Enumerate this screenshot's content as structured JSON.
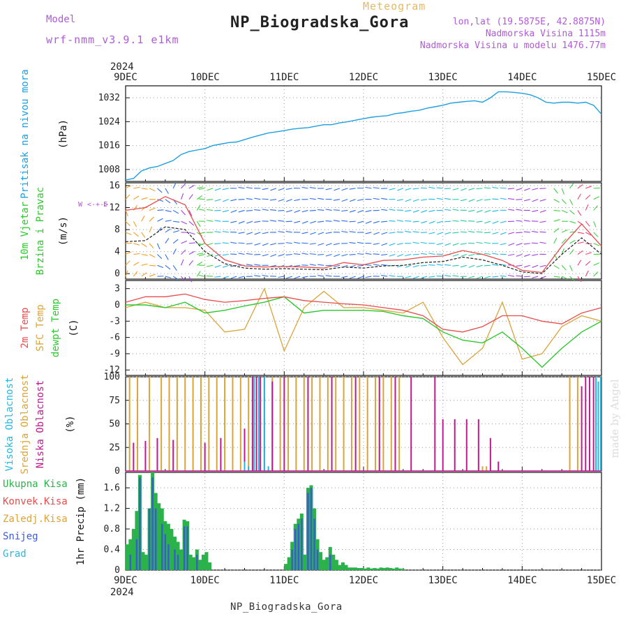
{
  "header": {
    "title": "NP_Biogradska_Gora",
    "meteogram_label": "Meteogram",
    "model_label": "Model",
    "model_name": "wrf-nmm_v3.9.1 e1km",
    "lonlat": "lon,lat (19.5875E, 42.8875N)",
    "elevation": "Nadmorska Visina 1115m",
    "elevation_model": "Nadmorska Visina u modelu 1476.77m",
    "footer": "NP_Biogradska_Gora",
    "watermark": "made by Angel"
  },
  "time_axis": {
    "year": "2024",
    "labels": [
      "9DEC",
      "10DEC",
      "11DEC",
      "12DEC",
      "13DEC",
      "14DEC",
      "15DEC"
    ]
  },
  "colors": {
    "pressure": "#1e9fe0",
    "temp2m": "#e84c4c",
    "sfc_temp": "#d9a43a",
    "dewpt": "#2ec82e",
    "cloud_high": "#27b7e0",
    "cloud_mid": "#d9a43a",
    "cloud_low": "#c0188e",
    "precip_total": "#2bb24a",
    "precip_snow": "#3c5ad8",
    "wind_mean": "#222222",
    "wind_gust": "#e84c4c"
  },
  "chart_data": [
    {
      "type": "line",
      "panel": "pressure",
      "ylabel": "Pritisak na nivou mora",
      "unit": "(hPa)",
      "ylim": [
        1004,
        1036
      ],
      "yticks": [
        "1008",
        "1016",
        "1024",
        "1032"
      ],
      "grid": true,
      "x": [
        0,
        0.1,
        0.2,
        0.3,
        0.4,
        0.5,
        0.6,
        0.7,
        0.8,
        0.9,
        1.0,
        1.1,
        1.2,
        1.3,
        1.4,
        1.5,
        1.6,
        1.7,
        1.8,
        1.9,
        2.0,
        2.1,
        2.2,
        2.3,
        2.4,
        2.5,
        2.6,
        2.7,
        2.8,
        2.9,
        3.0,
        3.1,
        3.2,
        3.3,
        3.4,
        3.5,
        3.6,
        3.7,
        3.8,
        3.9,
        4.0,
        4.1,
        4.2,
        4.3,
        4.4,
        4.5,
        4.6,
        4.7,
        4.8,
        4.9,
        5.0,
        5.1,
        5.2,
        5.3,
        5.4,
        5.5,
        5.6,
        5.7,
        5.8,
        5.9,
        6.0
      ],
      "series": [
        {
          "values": [
            1004.5,
            1005,
            1007.5,
            1008.5,
            1009,
            1010,
            1011,
            1013,
            1014,
            1014.5,
            1015,
            1016,
            1016.5,
            1017,
            1017.2,
            1018,
            1018.8,
            1019.5,
            1020.2,
            1020.6,
            1021,
            1021.5,
            1021.8,
            1022,
            1022.5,
            1023,
            1023,
            1023.6,
            1024,
            1024.5,
            1025,
            1025.5,
            1025.8,
            1026,
            1026.7,
            1027,
            1027.5,
            1027.8,
            1028.5,
            1029,
            1029.5,
            1030.2,
            1030.5,
            1030.8,
            1031,
            1030.5,
            1032,
            1034,
            1034,
            1033.8,
            1033.5,
            1033,
            1032,
            1030.5,
            1030.2,
            1030.5,
            1030.5,
            1030.2,
            1030.5,
            1029.5,
            1026.5
          ]
        }
      ]
    },
    {
      "type": "line",
      "panel": "wind",
      "ylabel": "10m Vjetar",
      "ylabel2": "Brzina i Pravac",
      "unit": "(m/s)",
      "ylim": [
        -1,
        16.5
      ],
      "yticks": [
        "0",
        "4",
        "8",
        "12",
        "16"
      ],
      "grid": true,
      "compass": "N S W E",
      "x": [
        0,
        0.25,
        0.5,
        0.75,
        1.0,
        1.25,
        1.5,
        1.75,
        2.0,
        2.25,
        2.5,
        2.75,
        3.0,
        3.25,
        3.5,
        3.75,
        4.0,
        4.25,
        4.5,
        4.75,
        5.0,
        5.25,
        5.5,
        5.75,
        6.0
      ],
      "series": [
        {
          "values": [
            5.8,
            6.0,
            8.5,
            8.0,
            4.0,
            1.8,
            1.0,
            0.8,
            0.9,
            0.8,
            0.7,
            1.2,
            1.0,
            1.4,
            1.5,
            2.0,
            2.2,
            3.0,
            2.5,
            1.5,
            0.3,
            0.0,
            3.5,
            6.5,
            3.5
          ]
        },
        {
          "values": [
            11.5,
            12.0,
            14.0,
            12.5,
            5.5,
            2.5,
            1.4,
            1.2,
            1.3,
            1.2,
            1.0,
            2.0,
            1.6,
            2.4,
            2.5,
            3.0,
            3.2,
            4.2,
            3.5,
            2.4,
            0.6,
            0.2,
            5.0,
            9.0,
            5.0
          ]
        }
      ]
    },
    {
      "type": "line",
      "panel": "temperature",
      "ylabel": "2m Temp",
      "ylabel2": "SFC Temp",
      "ylabel3": "dewpt Temp",
      "unit": "(C)",
      "ylim": [
        -13,
        4.5
      ],
      "yticks": [
        "3",
        "0",
        "-3",
        "-6",
        "-9",
        "-12"
      ],
      "grid": true,
      "x": [
        0,
        0.25,
        0.5,
        0.75,
        1.0,
        1.25,
        1.5,
        1.75,
        2.0,
        2.25,
        2.5,
        2.75,
        3.0,
        3.25,
        3.5,
        3.75,
        4.0,
        4.25,
        4.5,
        4.75,
        5.0,
        5.25,
        5.5,
        5.75,
        6.0
      ],
      "series": [
        {
          "values": [
            0.5,
            1.5,
            1.5,
            2.0,
            1.0,
            0.5,
            0.8,
            1.2,
            1.5,
            0.8,
            0.5,
            0.2,
            0.0,
            -0.5,
            -1.0,
            -2.0,
            -4.5,
            -5.0,
            -4.0,
            -2.0,
            -2.0,
            -3.0,
            -3.5,
            -1.5,
            -0.5
          ]
        },
        {
          "values": [
            -0.5,
            0.5,
            -0.5,
            -0.5,
            -1.0,
            -5.0,
            -4.5,
            3.0,
            -8.5,
            -0.5,
            2.5,
            -0.5,
            -0.5,
            -1.0,
            -1.5,
            0.5,
            -6.0,
            -11.0,
            -8.0,
            0.5,
            -10.0,
            -9.0,
            -4.0,
            -2.0,
            -3.0
          ]
        },
        {
          "values": [
            0.0,
            0.0,
            -0.5,
            0.5,
            -1.5,
            -1.0,
            -0.2,
            0.5,
            1.5,
            -1.5,
            -1.0,
            -1.0,
            -1.0,
            -1.2,
            -2.0,
            -2.5,
            -5.0,
            -6.5,
            -7.0,
            -5.0,
            -8.0,
            -11.5,
            -8.0,
            -5.0,
            -3.0
          ]
        }
      ]
    },
    {
      "type": "bar",
      "panel": "cloud",
      "ylabel": "Visoka Oblacnost",
      "ylabel2": "Srednja Oblacnost",
      "ylabel3": "Niska Oblacnost",
      "unit": "(%)",
      "ylim": [
        0,
        100
      ],
      "yticks": [
        "0",
        "25",
        "50",
        "75",
        "100"
      ],
      "grid": true,
      "series": [
        {
          "x": [
            0.05,
            0.15,
            0.3,
            0.45,
            0.55,
            0.65,
            0.75,
            0.85,
            0.95,
            1.05,
            1.15,
            1.25,
            1.35,
            1.45,
            1.55,
            1.65,
            1.75,
            1.85,
            1.95,
            2.05,
            2.15,
            2.25,
            2.35,
            2.45,
            2.55,
            2.65,
            2.75,
            2.85,
            2.95,
            3.05,
            3.15,
            3.25,
            3.35,
            3.45,
            4.5,
            4.55,
            5.6,
            5.7
          ],
          "values": [
            100,
            100,
            100,
            100,
            100,
            100,
            100,
            100,
            100,
            100,
            100,
            100,
            100,
            100,
            100,
            100,
            100,
            100,
            100,
            100,
            100,
            100,
            100,
            100,
            100,
            100,
            100,
            100,
            100,
            100,
            100,
            100,
            100,
            100,
            5,
            5,
            100,
            100
          ]
        },
        {
          "x": [
            0.1,
            0.25,
            0.4,
            0.6,
            1.0,
            1.2,
            1.5,
            1.6,
            1.65,
            1.7,
            1.75,
            1.85,
            2.0,
            2.3,
            2.6,
            2.9,
            3.2,
            3.4,
            3.6,
            3.9,
            4.0,
            4.15,
            4.3,
            4.45,
            4.6,
            4.7,
            5.15,
            5.6,
            5.75,
            5.8,
            5.85,
            5.9
          ],
          "values": [
            30,
            32,
            35,
            33,
            30,
            35,
            45,
            100,
            100,
            100,
            100,
            95,
            100,
            100,
            100,
            100,
            100,
            100,
            100,
            100,
            55,
            55,
            55,
            55,
            35,
            10,
            0,
            0,
            90,
            100,
            100,
            100
          ]
        },
        {
          "x": [
            1.5,
            1.55,
            1.62,
            1.68,
            1.75,
            1.8,
            5.93,
            5.96,
            5.99
          ],
          "values": [
            10,
            5,
            100,
            100,
            100,
            5,
            100,
            95,
            100
          ]
        }
      ]
    },
    {
      "type": "bar",
      "panel": "precip",
      "ylabel": "1hr Precip",
      "unit": "(mm)",
      "ylim": [
        0,
        1.9
      ],
      "yticks": [
        "0",
        "0.4",
        "0.8",
        "1.2",
        "1.6"
      ],
      "grid": true,
      "legend": [
        "Ukupna Kisa",
        "Konvek.Kisa",
        "Zaledj.Kisa",
        "Snijeg",
        "Grad"
      ],
      "series": [
        {
          "x": [
            0.02,
            0.06,
            0.1,
            0.14,
            0.18,
            0.22,
            0.26,
            0.3,
            0.34,
            0.38,
            0.42,
            0.46,
            0.5,
            0.54,
            0.58,
            0.62,
            0.66,
            0.7,
            0.74,
            0.78,
            0.82,
            0.86,
            0.9,
            0.94,
            0.98,
            1.02,
            1.06,
            2.02,
            2.06,
            2.1,
            2.14,
            2.18,
            2.22,
            2.26,
            2.3,
            2.34,
            2.38,
            2.42,
            2.46,
            2.5,
            2.54,
            2.58,
            2.62,
            2.66,
            2.7,
            2.74,
            2.78,
            2.82,
            2.86,
            2.9,
            2.94,
            2.98,
            3.02,
            3.06,
            3.1,
            3.14,
            3.18,
            3.22,
            3.26,
            3.3,
            3.34,
            3.38,
            3.42,
            3.46,
            3.5
          ],
          "values": [
            0.5,
            0.6,
            0.8,
            1.15,
            1.85,
            0.35,
            0.3,
            1.2,
            1.9,
            1.5,
            1.3,
            1.2,
            0.95,
            0.9,
            0.8,
            0.65,
            0.55,
            0.4,
            0.98,
            0.95,
            0.3,
            0.25,
            0.4,
            0.2,
            0.3,
            0.35,
            0.15,
            0.12,
            0.25,
            0.55,
            0.9,
            1.0,
            1.1,
            0.3,
            1.6,
            1.65,
            1.2,
            0.6,
            0.35,
            0.2,
            0.25,
            0.45,
            0.3,
            0.2,
            0.1,
            0.15,
            0.1,
            0.05,
            0.05,
            0.05,
            0.04,
            0.04,
            0.03,
            0.05,
            0.03,
            0.04,
            0.03,
            0.05,
            0.04,
            0.05,
            0.04,
            0.03,
            0.05,
            0.03,
            0.02
          ]
        },
        {
          "x": [
            0.06,
            0.14,
            0.18,
            0.3,
            0.34,
            0.38,
            0.46,
            0.5,
            0.54,
            0.62,
            0.66,
            0.74,
            0.78,
            0.9,
            2.1,
            2.14,
            2.18,
            2.22,
            2.3,
            2.34,
            2.38,
            2.42,
            2.58
          ],
          "values": [
            0.3,
            0.6,
            1.8,
            1.2,
            1.8,
            1.2,
            0.9,
            0.7,
            0.5,
            0.4,
            0.3,
            0.85,
            0.85,
            0.3,
            0.4,
            0.8,
            0.9,
            1.0,
            1.5,
            1.6,
            1.0,
            0.4,
            0.3
          ]
        }
      ]
    }
  ]
}
